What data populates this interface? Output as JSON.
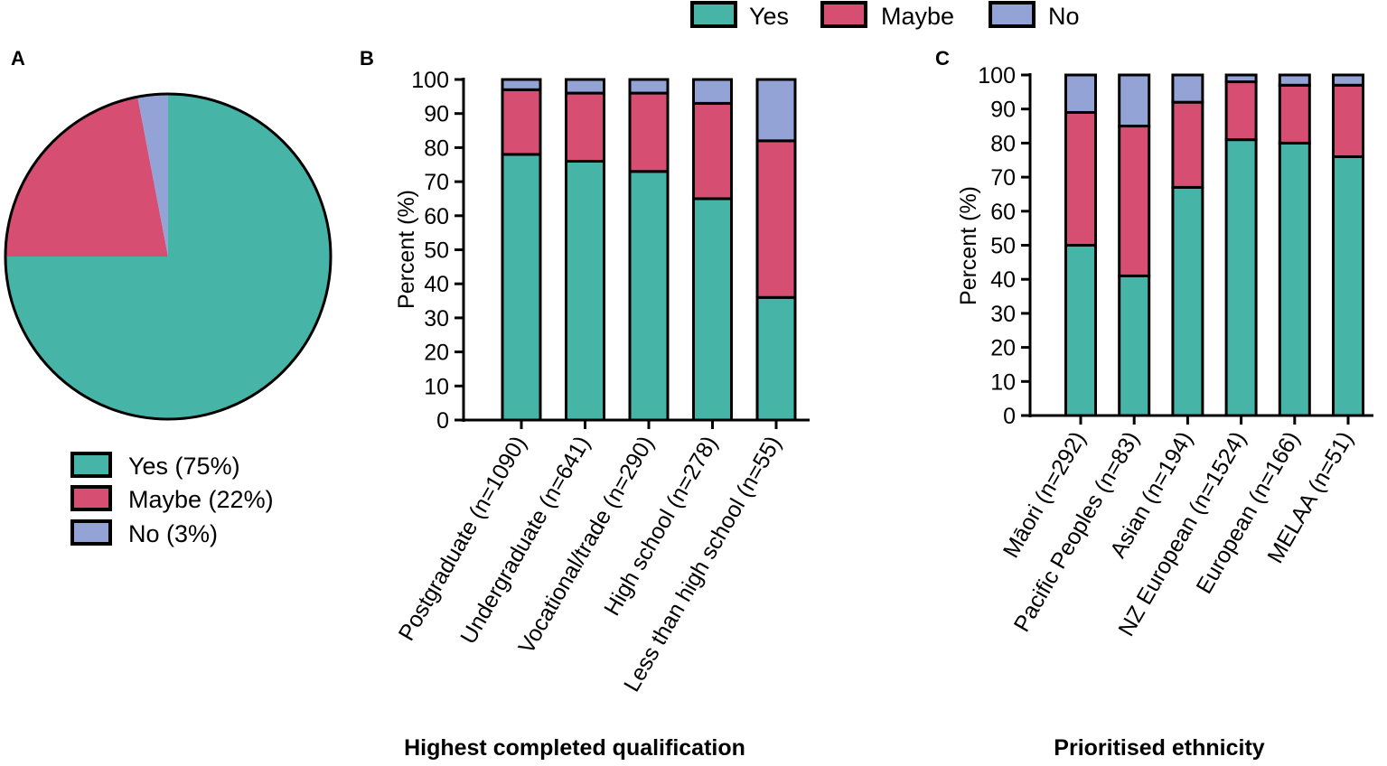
{
  "colors": {
    "yes": "#46b5a8",
    "maybe": "#d64f73",
    "no": "#93a3d6",
    "stroke": "#000000"
  },
  "top_legend": {
    "items": [
      {
        "label": "Yes",
        "color": "#46b5a8"
      },
      {
        "label": "Maybe",
        "color": "#d64f73"
      },
      {
        "label": "No",
        "color": "#93a3d6"
      }
    ]
  },
  "chart_data": [
    {
      "panel": "A",
      "type": "pie",
      "labels": [
        "Yes",
        "Maybe",
        "No"
      ],
      "values": [
        75,
        22,
        3
      ],
      "legend": [
        "Yes (75%)",
        "Maybe (22%)",
        "No (3%)"
      ],
      "legend_position": "below"
    },
    {
      "panel": "B",
      "type": "bar",
      "stacked": true,
      "title": "",
      "xlabel": "Highest completed qualification",
      "ylabel": "Percent (%)",
      "ylim": [
        0,
        100
      ],
      "yticks": [
        0,
        10,
        20,
        30,
        40,
        50,
        60,
        70,
        80,
        90,
        100
      ],
      "categories": [
        "Postgraduate (n=1090)",
        "Undergraduate  (n=641)",
        "Vocational/trade (n=290)",
        "High school (n=278)",
        "Less than high school (n=55)"
      ],
      "series": [
        {
          "name": "Yes",
          "values": [
            78,
            76,
            73,
            65,
            36
          ]
        },
        {
          "name": "Maybe",
          "values": [
            19,
            20,
            23,
            28,
            46
          ]
        },
        {
          "name": "No",
          "values": [
            3,
            4,
            4,
            7,
            18
          ]
        }
      ]
    },
    {
      "panel": "C",
      "type": "bar",
      "stacked": true,
      "title": "",
      "xlabel": "Prioritised ethnicity",
      "ylabel": "Percent (%)",
      "ylim": [
        0,
        100
      ],
      "yticks": [
        0,
        10,
        20,
        30,
        40,
        50,
        60,
        70,
        80,
        90,
        100
      ],
      "categories": [
        "Māori (n=292)",
        "Pacific Peoples (n=83)",
        "Asian (n=194)",
        "NZ European (n=1524)",
        "European (n=166)",
        "MELAA (n=51)"
      ],
      "series": [
        {
          "name": "Yes",
          "values": [
            50,
            41,
            67,
            81,
            80,
            76
          ]
        },
        {
          "name": "Maybe",
          "values": [
            39,
            44,
            25,
            17,
            17,
            21
          ]
        },
        {
          "name": "No",
          "values": [
            11,
            15,
            8,
            2,
            3,
            3
          ]
        }
      ]
    }
  ]
}
